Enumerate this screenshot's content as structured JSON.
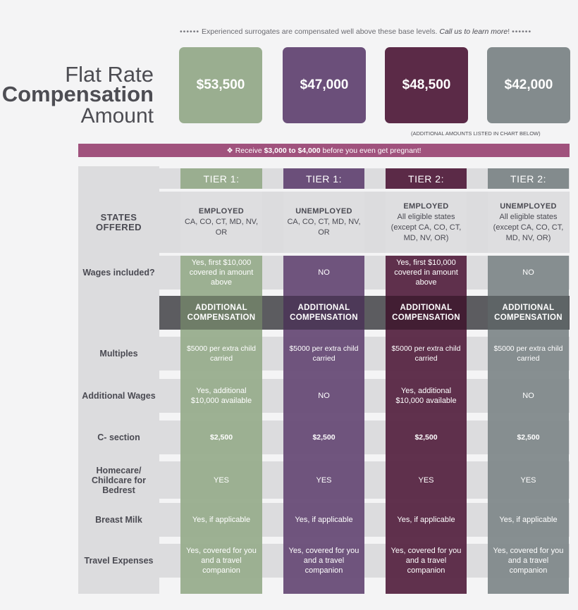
{
  "top_note": {
    "dots_left": "••••••",
    "text": "Experienced surrogates are compensated well above these base levels.",
    "cta": "Call us to learn more",
    "bang": "!",
    "dots_right": "••••••"
  },
  "title": {
    "line1": "Flat Rate",
    "line2": "Compensation",
    "line3": "Amount"
  },
  "amounts": [
    "$53,500",
    "$47,000",
    "$48,500",
    "$42,000"
  ],
  "additional_note": "(ADDITIONAL AMOUNTS LISTED IN CHART BELOW)",
  "banner": {
    "prefix": "❖ Receive",
    "range": "$3,000 to $4,000",
    "suffix": "before you even get pregnant!"
  },
  "colors": {
    "green": "#9aae90",
    "purple": "#6b4f7a",
    "plum": "#5b2a47",
    "slate": "#838b8d",
    "banner": "#a0527d",
    "row_band": "#dcdcde",
    "row_band_dark": "#5c5c60"
  },
  "columns": [
    {
      "tier": "TIER 1:",
      "status": "EMPLOYED",
      "states": "CA, CO, CT, MD, NV, OR",
      "wages": "Yes, first $10,000 covered in amount above",
      "additional_header": "ADDITIONAL COMPENSATION",
      "multiples": "$5000 per extra child carried",
      "additional_wages": "Yes, additional $10,000 available",
      "c_section": "$2,500",
      "homecare": "YES",
      "breast_milk": "Yes, if applicable",
      "travel": "Yes, covered for you and a travel companion"
    },
    {
      "tier": "TIER 1:",
      "status": "UNEMPLOYED",
      "states": "CA, CO, CT, MD, NV, OR",
      "wages": "NO",
      "additional_header": "ADDITIONAL COMPENSATION",
      "multiples": "$5000 per extra child carried",
      "additional_wages": "NO",
      "c_section": "$2,500",
      "homecare": "YES",
      "breast_milk": "Yes, if applicable",
      "travel": "Yes, covered for you and a travel companion"
    },
    {
      "tier": "TIER 2:",
      "status": "EMPLOYED",
      "states": "All eligible states (except CA, CO, CT, MD, NV, OR)",
      "wages": "Yes, first $10,000 covered in amount above",
      "additional_header": "ADDITIONAL COMPENSATION",
      "multiples": "$5000 per extra child carried",
      "additional_wages": "Yes, additional $10,000 available",
      "c_section": "$2,500",
      "homecare": "YES",
      "breast_milk": "Yes, if applicable",
      "travel": "Yes, covered for you and a travel companion"
    },
    {
      "tier": "TIER 2:",
      "status": "UNEMPLOYED",
      "states": "All eligible states (except CA, CO, CT, MD, NV, OR)",
      "wages": "NO",
      "additional_header": "ADDITIONAL COMPENSATION",
      "multiples": "$5000 per extra child carried",
      "additional_wages": "NO",
      "c_section": "$2,500",
      "homecare": "YES",
      "breast_milk": "Yes, if applicable",
      "travel": "Yes, covered for you and a travel companion"
    }
  ],
  "row_labels": {
    "states": "STATES OFFERED",
    "wages": "Wages included?",
    "multiples": "Multiples",
    "additional_wages": "Additional Wages",
    "c_section": "C- section",
    "homecare": "Homecare/ Childcare for Bedrest",
    "breast_milk": "Breast Milk",
    "travel": "Travel Expenses"
  }
}
